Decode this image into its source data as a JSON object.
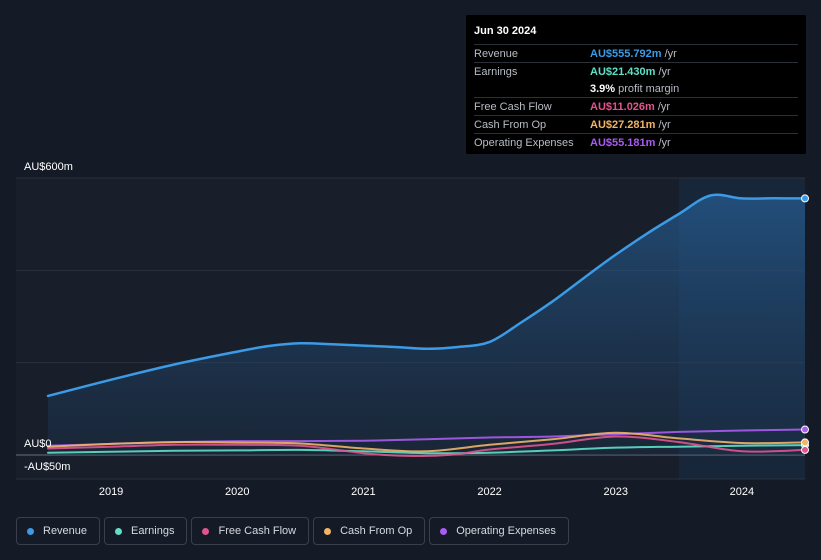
{
  "tooltip": {
    "date": "Jun 30 2024",
    "rows": [
      {
        "label": "Revenue",
        "value": "AU$555.792m",
        "unit": "/yr",
        "color": "#3b9be6"
      },
      {
        "label": "Earnings",
        "value": "AU$21.430m",
        "unit": "/yr",
        "color": "#5fe0c6"
      },
      {
        "label": "",
        "value": "3.9%",
        "unit": "profit margin",
        "color": "#ffffff"
      },
      {
        "label": "Free Cash Flow",
        "value": "AU$11.026m",
        "unit": "/yr",
        "color": "#e0558e"
      },
      {
        "label": "Cash From Op",
        "value": "AU$27.281m",
        "unit": "/yr",
        "color": "#f1b469"
      },
      {
        "label": "Operating Expenses",
        "value": "AU$55.181m",
        "unit": "/yr",
        "color": "#a95cf0"
      }
    ]
  },
  "legend": [
    {
      "label": "Revenue",
      "color": "#3b9be6"
    },
    {
      "label": "Earnings",
      "color": "#5fe0c6"
    },
    {
      "label": "Free Cash Flow",
      "color": "#e0558e"
    },
    {
      "label": "Cash From Op",
      "color": "#f1b469"
    },
    {
      "label": "Operating Expenses",
      "color": "#a95cf0"
    }
  ],
  "chart_data": {
    "type": "line",
    "y_tick_labels": [
      "AU$600m",
      "AU$0",
      "-AU$50m"
    ],
    "ylim": [
      -50,
      600
    ],
    "xlim": [
      2018.5,
      2024.5
    ],
    "x_ticks": [
      2019,
      2020,
      2021,
      2022,
      2023,
      2024
    ],
    "x_tick_labels": [
      "2019",
      "2020",
      "2021",
      "2022",
      "2023",
      "2024"
    ],
    "highlight_start": 2023.5,
    "series": [
      {
        "name": "Revenue",
        "color": "#3b9be6",
        "area": true,
        "x": [
          2018.5,
          2019.0,
          2019.5,
          2020.0,
          2020.25,
          2020.5,
          2020.75,
          2021.0,
          2021.25,
          2021.5,
          2021.75,
          2022.0,
          2022.25,
          2022.5,
          2022.75,
          2023.0,
          2023.25,
          2023.5,
          2023.75,
          2024.0,
          2024.25,
          2024.5
        ],
        "values": [
          128,
          163,
          196,
          224,
          236,
          242,
          240,
          237,
          234,
          230,
          234,
          245,
          287,
          333,
          384,
          434,
          480,
          522,
          562,
          555.8,
          556,
          555.8
        ]
      },
      {
        "name": "Earnings",
        "color": "#5fe0c6",
        "x": [
          2018.5,
          2019.0,
          2019.5,
          2020.0,
          2020.5,
          2021.0,
          2021.5,
          2022.0,
          2022.5,
          2023.0,
          2023.5,
          2024.0,
          2024.5
        ],
        "values": [
          5,
          7,
          9,
          10,
          11,
          8,
          4,
          5,
          10,
          16,
          18,
          20,
          21.4
        ]
      },
      {
        "name": "Free Cash Flow",
        "color": "#e0558e",
        "x": [
          2018.5,
          2019.0,
          2019.5,
          2020.0,
          2020.5,
          2021.0,
          2021.25,
          2021.5,
          2021.75,
          2022.0,
          2022.5,
          2023.0,
          2023.5,
          2024.0,
          2024.5
        ],
        "values": [
          14,
          18,
          22,
          22,
          20,
          4,
          -1,
          -2,
          2,
          12,
          24,
          40,
          28,
          8,
          11
        ]
      },
      {
        "name": "Cash From Op",
        "color": "#f1b469",
        "x": [
          2018.5,
          2019.0,
          2019.5,
          2020.0,
          2020.5,
          2021.0,
          2021.5,
          2022.0,
          2022.5,
          2023.0,
          2023.5,
          2024.0,
          2024.5
        ],
        "values": [
          18,
          24,
          28,
          27,
          25,
          14,
          8,
          22,
          34,
          48,
          36,
          26,
          27.3
        ]
      },
      {
        "name": "Operating Expenses",
        "color": "#a95cf0",
        "x": [
          2018.5,
          2019.0,
          2019.5,
          2020.0,
          2020.5,
          2021.0,
          2021.5,
          2022.0,
          2022.5,
          2023.0,
          2023.5,
          2024.0,
          2024.5
        ],
        "values": [
          20,
          24,
          28,
          30,
          30,
          31,
          34,
          38,
          40,
          45,
          50,
          53,
          55.2
        ]
      }
    ]
  }
}
